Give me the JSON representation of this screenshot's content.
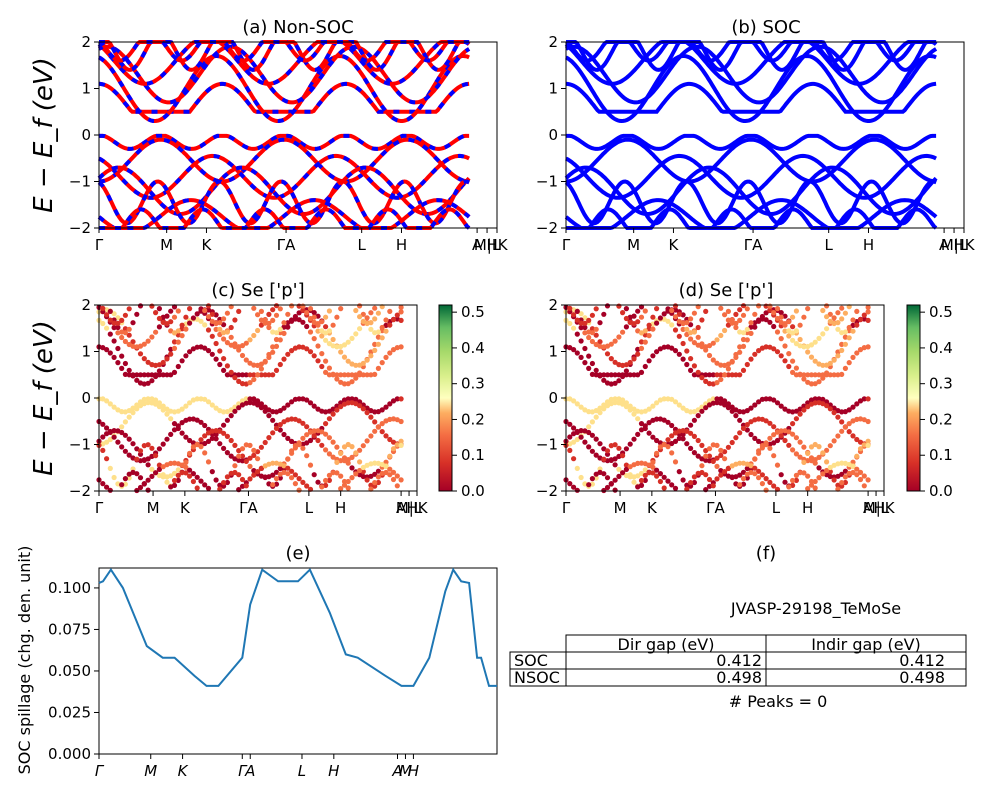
{
  "panels": {
    "a": {
      "title": "(a) Non-SOC"
    },
    "b": {
      "title": "(b) SOC"
    },
    "c": {
      "title": "(c)  Se ['p']"
    },
    "d": {
      "title": "(d) Se ['p']"
    },
    "e": {
      "title": "(e)"
    },
    "f": {
      "title": "(f)"
    }
  },
  "band_ylabel": "E − E_f (eV)",
  "band_yticks": [
    "2",
    "1",
    "0",
    "−1",
    "−2"
  ],
  "kpath_labels": [
    "Γ",
    "M",
    "K",
    "ΓA",
    "L",
    "H",
    "A",
    "M|L",
    "HK"
  ],
  "kpath_labels_italic": [
    "Γ",
    "M",
    "K",
    "Γ",
    "A",
    "L",
    "H",
    "A",
    "M",
    "H"
  ],
  "colorbar_c": [
    "0.5",
    "0.4",
    "0.3",
    "0.2",
    "0.1",
    "0.0"
  ],
  "colorbar_d": [
    "0.5",
    "0.4",
    "0.3",
    "0.2",
    "0.1",
    "0.0"
  ],
  "spillage_ylabel": "SOC spillage (chg. den. unit)",
  "spillage_yticks": [
    "0.100",
    "0.075",
    "0.050",
    "0.025",
    "0.000"
  ],
  "info": {
    "material": "JVASP-29198_TeMoSe",
    "headers": [
      "Dir gap (eV)",
      "Indir gap (eV)"
    ],
    "rows": [
      {
        "label": "SOC",
        "dir": "0.412",
        "indir": "0.412"
      },
      {
        "label": "NSOC",
        "dir": "0.498",
        "indir": "0.498"
      }
    ],
    "peaks": "# Peaks = 0"
  },
  "colors": {
    "nonsoc_red": "#ff0000",
    "nonsoc_blue": "#0000ff",
    "soc_blue": "#0000ff",
    "spillage_line": "#1f77b4"
  },
  "chart_data": [
    {
      "type": "line",
      "title": "(a) Non-SOC",
      "ylabel": "E − E_f (eV)",
      "ylim": [
        -2,
        2
      ],
      "series": [
        {
          "name": "",
          "values": []
        }
      ],
      "notes": "band structure lines"
    },
    {
      "type": "line",
      "title": "(b) SOC",
      "ylabel": "",
      "ylim": [
        -2,
        2
      ]
    },
    {
      "type": "scatter",
      "title": "(c)  Se ['p']",
      "ylim": [
        -2,
        2
      ],
      "colorbar": [
        0.0,
        0.5
      ]
    },
    {
      "type": "scatter",
      "title": "(d) Se ['p']",
      "ylim": [
        -2,
        2
      ],
      "colorbar": [
        0.0,
        0.5
      ]
    },
    {
      "type": "line",
      "title": "(e)",
      "ylabel": "SOC spillage (chg. den. unit)",
      "ylim": [
        0,
        0.112
      ],
      "x": [
        0,
        0.01,
        0.03,
        0.06,
        0.12,
        0.16,
        0.19,
        0.24,
        0.27,
        0.3,
        0.36,
        0.38,
        0.41,
        0.45,
        0.48,
        0.5,
        0.53,
        0.58,
        0.62,
        0.65,
        0.72,
        0.76,
        0.79,
        0.83,
        0.87,
        0.89,
        0.91,
        0.93,
        0.95,
        0.96,
        0.98,
        1.0
      ],
      "values": [
        0.103,
        0.104,
        0.111,
        0.1,
        0.065,
        0.058,
        0.058,
        0.047,
        0.041,
        0.041,
        0.058,
        0.09,
        0.111,
        0.104,
        0.104,
        0.104,
        0.111,
        0.085,
        0.06,
        0.058,
        0.047,
        0.041,
        0.041,
        0.058,
        0.098,
        0.111,
        0.104,
        0.103,
        0.058,
        0.058,
        0.041,
        0.041
      ]
    }
  ]
}
